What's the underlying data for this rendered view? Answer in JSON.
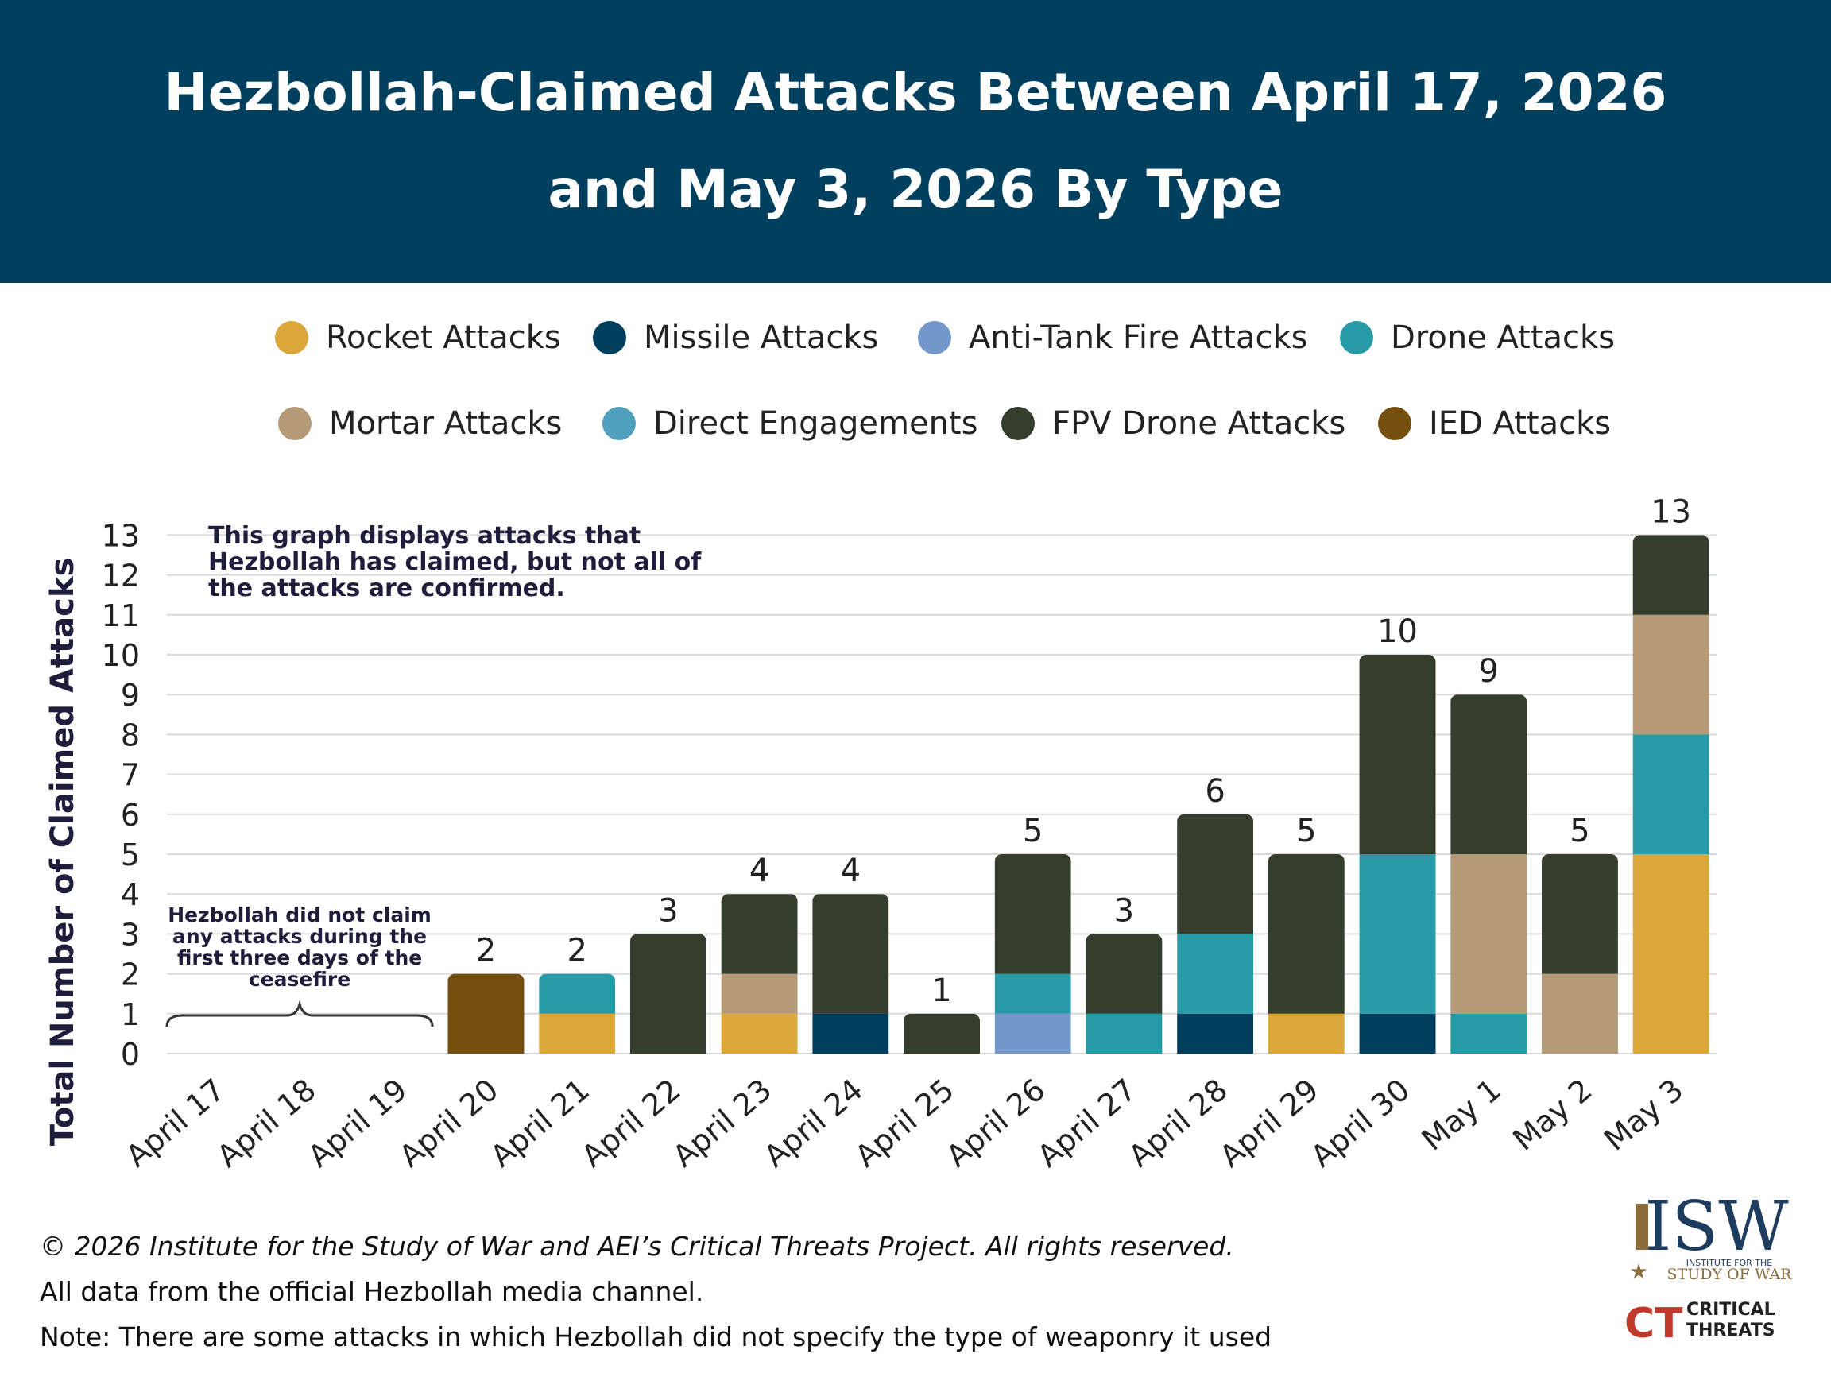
{
  "header": {
    "title_line1": "Hezbollah-Claimed Attacks Between April 17, 2026",
    "title_line2": "and May 3, 2026 By Type"
  },
  "legend": [
    {
      "label": "Rocket Attacks",
      "color": "#dba63a"
    },
    {
      "label": "Missile Attacks",
      "color": "#00405e"
    },
    {
      "label": "Anti-Tank Fire Attacks",
      "color": "#7397c8"
    },
    {
      "label": "Drone Attacks",
      "color": "#269aa6"
    },
    {
      "label": "Mortar Attacks",
      "color": "#b49a77"
    },
    {
      "label": "Direct Engagements",
      "color": "#4f9fbd"
    },
    {
      "label": "FPV Drone Attacks",
      "color": "#353d2c"
    },
    {
      "label": "IED Attacks",
      "color": "#744f0d"
    }
  ],
  "chart_data": {
    "type": "bar",
    "stacked": true,
    "ylabel": "Total Number of Claimed Attacks",
    "ylim": [
      0,
      13
    ],
    "yticks": [
      0,
      1,
      2,
      3,
      4,
      5,
      6,
      7,
      8,
      9,
      10,
      11,
      12,
      13
    ],
    "grid": true,
    "categories": [
      "April 17",
      "April 18",
      "April 19",
      "April 20",
      "April 21",
      "April 22",
      "April 23",
      "April 24",
      "April 25",
      "April 26",
      "April 27",
      "April 28",
      "April 29",
      "April 30",
      "May 1",
      "May 2",
      "May 3"
    ],
    "series": [
      {
        "name": "Rocket Attacks",
        "color": "#dba63a",
        "values": [
          0,
          0,
          0,
          0,
          1,
          0,
          1,
          0,
          0,
          0,
          0,
          0,
          1,
          0,
          0,
          0,
          5
        ]
      },
      {
        "name": "Missile Attacks",
        "color": "#00405e",
        "values": [
          0,
          0,
          0,
          0,
          0,
          0,
          0,
          1,
          0,
          0,
          0,
          1,
          0,
          1,
          0,
          0,
          0
        ]
      },
      {
        "name": "Anti-Tank Fire Attacks",
        "color": "#7397c8",
        "values": [
          0,
          0,
          0,
          0,
          0,
          0,
          0,
          0,
          0,
          1,
          0,
          0,
          0,
          0,
          0,
          0,
          0
        ]
      },
      {
        "name": "Drone Attacks",
        "color": "#269aa6",
        "values": [
          0,
          0,
          0,
          0,
          1,
          0,
          0,
          0,
          0,
          1,
          1,
          2,
          0,
          4,
          1,
          0,
          3
        ]
      },
      {
        "name": "Mortar Attacks",
        "color": "#b49a77",
        "values": [
          0,
          0,
          0,
          0,
          0,
          0,
          1,
          0,
          0,
          0,
          0,
          0,
          0,
          0,
          4,
          2,
          3
        ]
      },
      {
        "name": "Direct Engagements",
        "color": "#4f9fbd",
        "values": [
          0,
          0,
          0,
          0,
          0,
          0,
          0,
          0,
          0,
          0,
          0,
          0,
          0,
          0,
          0,
          0,
          0
        ]
      },
      {
        "name": "FPV Drone Attacks",
        "color": "#353d2c",
        "values": [
          0,
          0,
          0,
          0,
          0,
          3,
          2,
          3,
          1,
          3,
          2,
          3,
          4,
          5,
          4,
          3,
          2
        ]
      },
      {
        "name": "IED Attacks",
        "color": "#744f0d",
        "values": [
          0,
          0,
          0,
          2,
          0,
          0,
          0,
          0,
          0,
          0,
          0,
          0,
          0,
          0,
          0,
          0,
          0
        ]
      }
    ],
    "totals": [
      null,
      null,
      null,
      2,
      2,
      3,
      4,
      4,
      1,
      5,
      3,
      6,
      5,
      10,
      9,
      5,
      13
    ],
    "annotations": [
      {
        "text": [
          "This graph displays attacks that",
          "Hezbollah has claimed, but not all of",
          "the attacks are confirmed."
        ]
      },
      {
        "text": [
          "Hezbollah did not claim",
          "any attacks during the",
          "first three days of the",
          "ceasefire"
        ],
        "span": [
          "April 17",
          "April 19"
        ]
      }
    ]
  },
  "footer": {
    "copyright": "© 2026 Institute for the Study of War and AEI’s Critical Threats Project. All rights reserved.",
    "source": "All data from the official Hezbollah media channel.",
    "note": "Note: There are some attacks in which Hezbollah did not specify the type of weaponry it used"
  },
  "logos": {
    "isw_main": "ISW",
    "isw_sub1": "INSTITUTE FOR THE",
    "isw_sub2": "STUDY OF WAR",
    "ct_mark": "CT",
    "ct_text1": "CRITICAL",
    "ct_text2": "THREATS"
  }
}
